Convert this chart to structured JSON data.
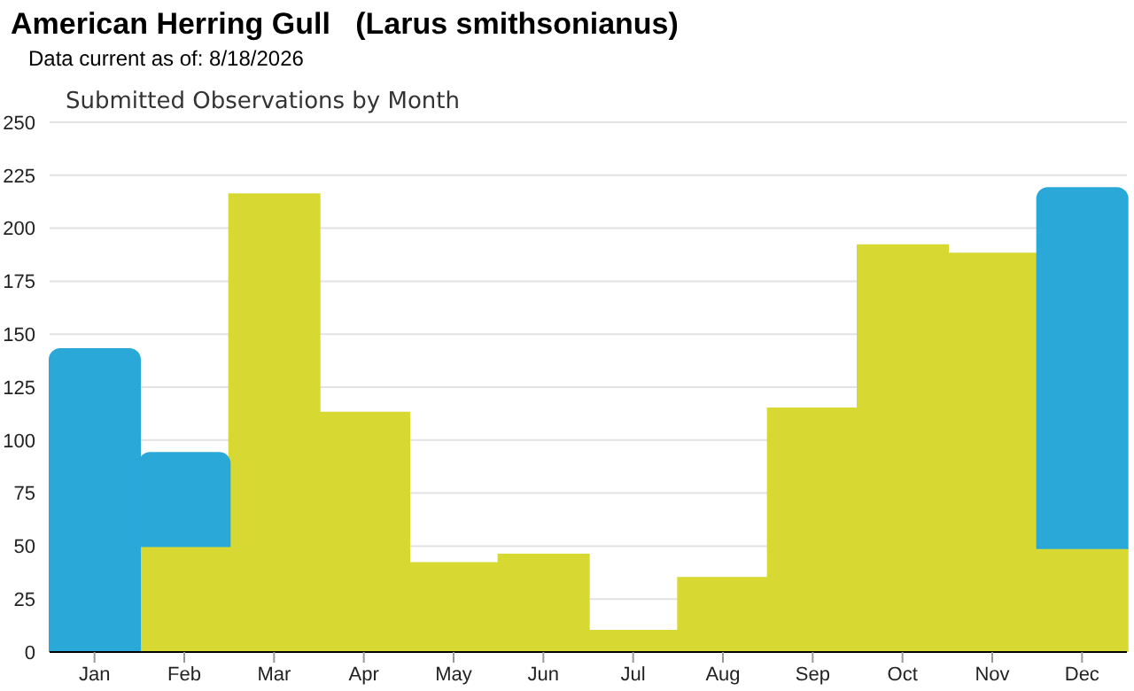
{
  "chart_data": {
    "type": "bar",
    "title": "American Herring Gull   (Larus smithsonianus)",
    "subtitle": "Data current as of: 8/18/2026",
    "annotations": [
      "Submitted Observations by Month"
    ],
    "categories": [
      "Jan",
      "Feb",
      "Mar",
      "Apr",
      "May",
      "Jun",
      "Jul",
      "Aug",
      "Sep",
      "Oct",
      "Nov",
      "Dec"
    ],
    "series": [
      {
        "color": "#d8d832",
        "values": [
          0,
          50,
          216,
          113,
          42,
          46,
          10,
          35,
          115,
          192,
          188,
          49
        ]
      },
      {
        "color": "#2aa8d8",
        "values": [
          143,
          44,
          0,
          0,
          0,
          0,
          0,
          0,
          0,
          0,
          0,
          170
        ]
      }
    ],
    "stacked": true,
    "ylim": [
      0,
      250
    ],
    "yticks": [
      0,
      25,
      50,
      75,
      100,
      125,
      150,
      175,
      200,
      225,
      250
    ],
    "grid": "y"
  }
}
